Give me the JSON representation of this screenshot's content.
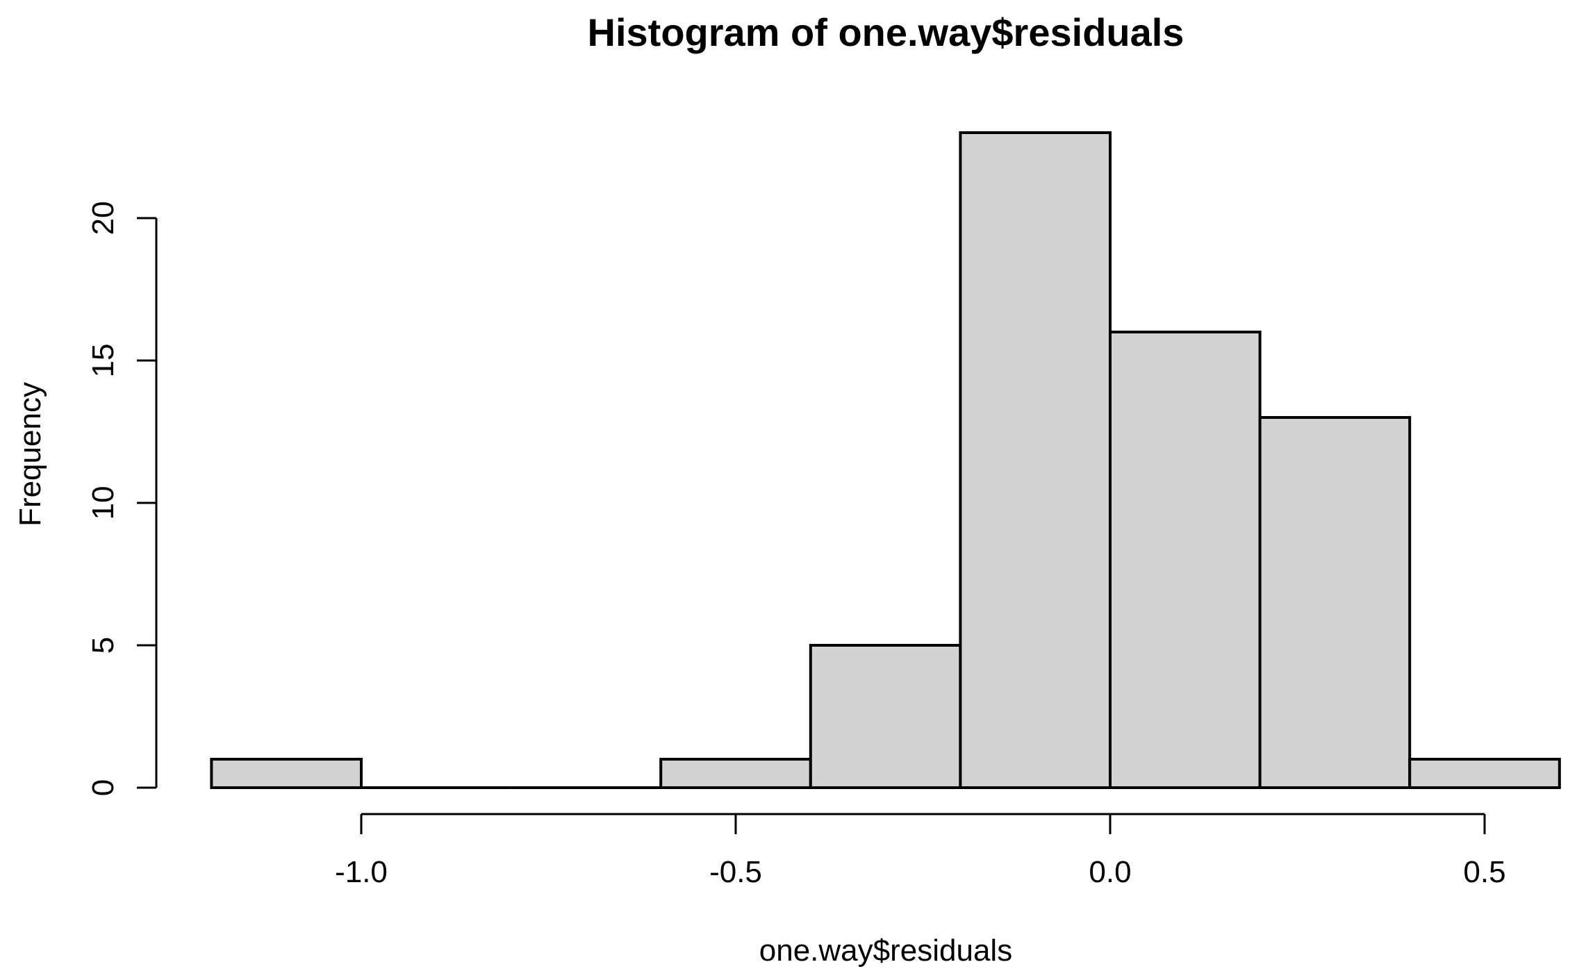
{
  "chart_data": {
    "type": "bar",
    "subtype": "histogram",
    "title": "Histogram of one.way$residuals",
    "xlabel": "one.way$residuals",
    "ylabel": "Frequency",
    "bin_breaks": [
      -1.2,
      -1.0,
      -0.8,
      -0.6,
      -0.4,
      -0.2,
      0.0,
      0.2,
      0.4,
      0.6
    ],
    "counts": [
      1,
      0,
      0,
      1,
      5,
      23,
      16,
      13,
      1
    ],
    "x_ticks": [
      {
        "value": -1.0,
        "label": "-1.0"
      },
      {
        "value": -0.5,
        "label": "-0.5"
      },
      {
        "value": 0.0,
        "label": "0.0"
      },
      {
        "value": 0.5,
        "label": "0.5"
      }
    ],
    "y_ticks": [
      {
        "value": 0,
        "label": "0"
      },
      {
        "value": 5,
        "label": "5"
      },
      {
        "value": 10,
        "label": "10"
      },
      {
        "value": 15,
        "label": "15"
      },
      {
        "value": 20,
        "label": "20"
      }
    ],
    "xlim": [
      -1.2,
      0.6
    ],
    "ylim": [
      0,
      23
    ],
    "y_axis_range": [
      0,
      20
    ],
    "grid": false,
    "legend": null,
    "colors": {
      "bar_fill": "#d3d3d3",
      "bar_border": "#000000",
      "axis": "#000000",
      "text": "#000000",
      "background": "#ffffff"
    }
  }
}
